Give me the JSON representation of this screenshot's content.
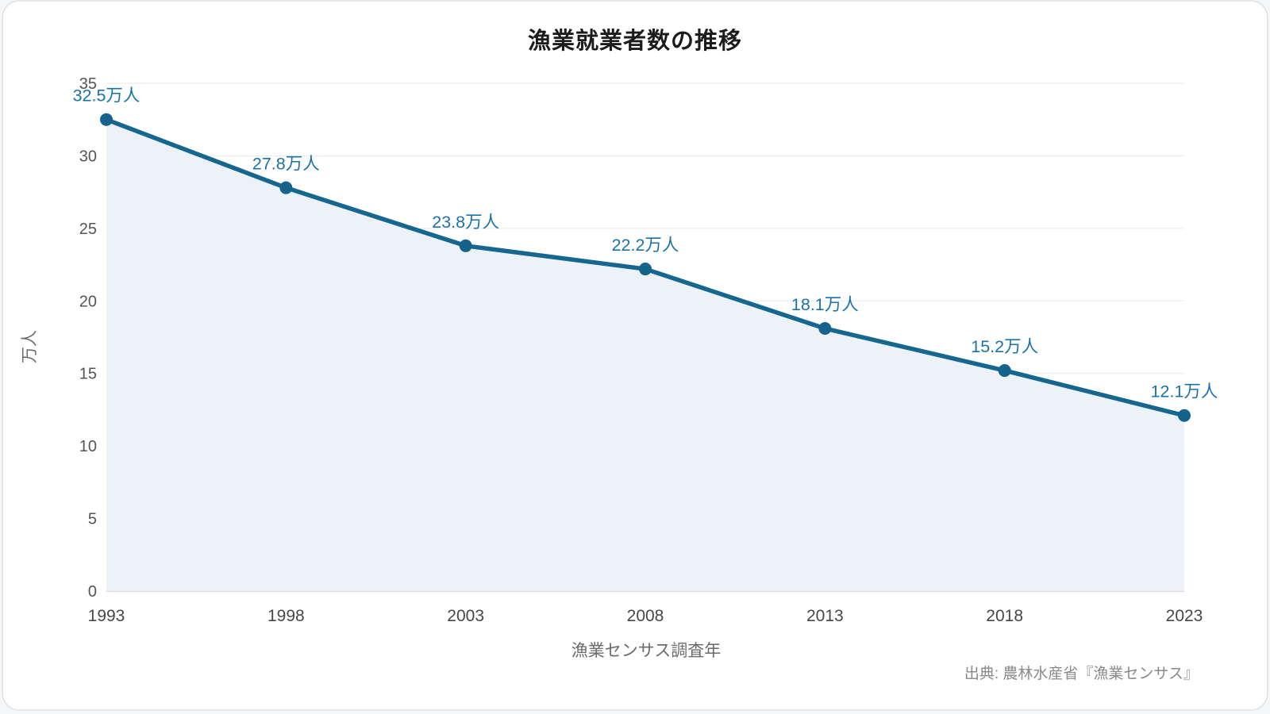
{
  "chart_data": {
    "type": "line",
    "title": "漁業就業者数の推移",
    "xlabel": "漁業センサス調査年",
    "ylabel": "万人",
    "source": "出典: 農林水産省『漁業センサス』",
    "categories": [
      "1993",
      "1998",
      "2003",
      "2008",
      "2013",
      "2018",
      "2023"
    ],
    "values": [
      32.5,
      27.8,
      23.8,
      22.2,
      18.1,
      15.2,
      12.1
    ],
    "point_labels": [
      "32.5万人",
      "27.8万人",
      "23.8万人",
      "22.2万人",
      "18.1万人",
      "15.2万人",
      "12.1万人"
    ],
    "ylim": [
      0,
      35
    ],
    "ytick_step": 5,
    "grid": true,
    "legend": false,
    "colors": {
      "line": "#16678f",
      "point": "#15628b",
      "area_fill": "#edf2f8",
      "label": "#1b72a6",
      "grid": "#e9e9e9",
      "axis": "#c9c9c9",
      "title": "#1c1c1c"
    }
  }
}
